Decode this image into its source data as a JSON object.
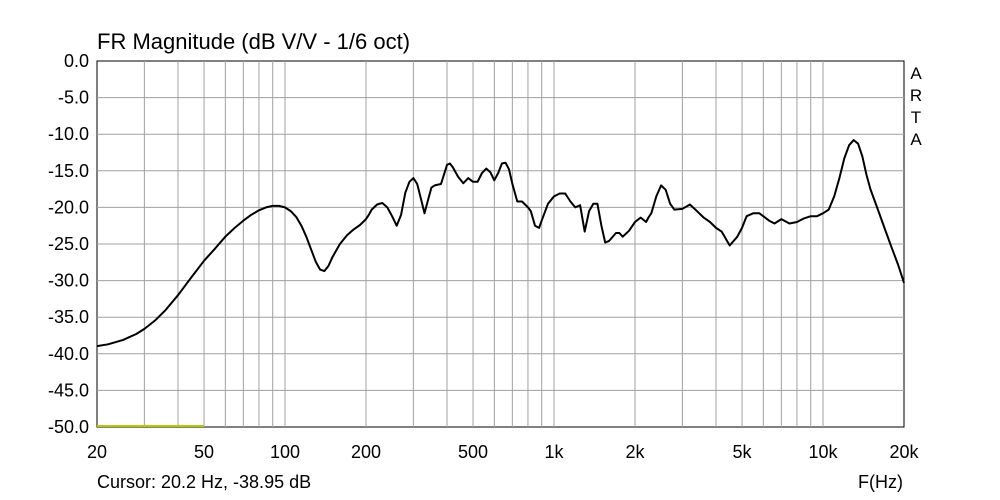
{
  "chart_data": {
    "type": "line",
    "title": "FR Magnitude (dB V/V - 1/6 oct)",
    "xlabel": "F(Hz)",
    "ylabel": "",
    "x_scale": "log",
    "xlim": [
      20,
      20000
    ],
    "ylim": [
      -50,
      0
    ],
    "grid": true,
    "y_ticks": [
      "0.0",
      "-5.0",
      "-10.0",
      "-15.0",
      "-20.0",
      "-25.0",
      "-30.0",
      "-35.0",
      "-40.0",
      "-45.0",
      "-50.0"
    ],
    "x_ticks": [
      "20",
      "50",
      "100",
      "200",
      "500",
      "1k",
      "2k",
      "5k",
      "10k",
      "20k"
    ],
    "brand": [
      "A",
      "R",
      "T",
      "A"
    ],
    "cursor_text": "Cursor: 20.2 Hz, -38.95 dB",
    "colors": {
      "curve": "#000000",
      "cursor_marker": "#b5c800",
      "grid": "#a0a0a0"
    },
    "cursor_marker": {
      "x_start": 20,
      "x_end": 50,
      "y": -50
    },
    "series": [
      {
        "x": [
          20,
          22,
          25,
          28,
          30,
          33,
          36,
          40,
          45,
          50,
          55,
          60,
          65,
          70,
          75,
          80,
          85,
          90,
          95,
          100,
          105,
          110,
          115,
          120,
          130,
          135,
          140,
          145,
          150,
          160,
          170,
          180,
          190,
          200,
          205,
          210,
          220,
          230,
          240,
          250,
          260,
          270,
          280,
          290,
          300,
          310,
          320,
          330,
          340,
          350,
          360,
          380,
          400,
          410,
          420,
          440,
          460,
          480,
          500,
          520,
          540,
          560,
          580,
          600,
          620,
          640,
          660,
          680,
          700,
          730,
          760,
          800,
          820,
          850,
          880,
          900,
          950,
          1000,
          1050,
          1100,
          1150,
          1200,
          1250,
          1300,
          1350,
          1400,
          1450,
          1500,
          1550,
          1600,
          1700,
          1750,
          1800,
          1900,
          2000,
          2100,
          2200,
          2250,
          2300,
          2400,
          2500,
          2600,
          2700,
          2800,
          3000,
          3200,
          3400,
          3600,
          3800,
          4000,
          4200,
          4500,
          4800,
          5000,
          5200,
          5500,
          5800,
          6000,
          6300,
          6600,
          7000,
          7500,
          8000,
          8500,
          9000,
          9500,
          10000,
          10500,
          11000,
          11500,
          12000,
          12500,
          13000,
          13500,
          14000,
          14500,
          15000,
          16000,
          17000,
          18000,
          19000,
          20000
        ],
        "y": [
          -38.95,
          -38.7,
          -38.1,
          -37.3,
          -36.6,
          -35.4,
          -34.0,
          -32.0,
          -29.5,
          -27.3,
          -25.6,
          -24.0,
          -22.8,
          -21.8,
          -21.0,
          -20.4,
          -20.0,
          -19.8,
          -19.8,
          -20.0,
          -20.5,
          -21.3,
          -22.5,
          -24.0,
          -27.4,
          -28.5,
          -28.7,
          -28.0,
          -26.8,
          -25.0,
          -23.8,
          -23.0,
          -22.4,
          -21.6,
          -21.0,
          -20.3,
          -19.6,
          -19.4,
          -20.0,
          -21.2,
          -22.5,
          -21.0,
          -18.0,
          -16.5,
          -16.0,
          -16.8,
          -18.8,
          -20.8,
          -19.0,
          -17.3,
          -17.0,
          -16.8,
          -14.2,
          -14.0,
          -14.5,
          -15.8,
          -16.7,
          -16.0,
          -16.5,
          -16.5,
          -15.3,
          -14.7,
          -15.2,
          -16.3,
          -15.3,
          -14.0,
          -13.9,
          -14.8,
          -16.8,
          -19.2,
          -19.2,
          -20.0,
          -20.5,
          -22.5,
          -22.8,
          -21.8,
          -19.5,
          -18.5,
          -18.1,
          -18.1,
          -19.2,
          -20.0,
          -19.7,
          -23.3,
          -20.5,
          -19.5,
          -19.5,
          -22.5,
          -24.8,
          -24.6,
          -23.5,
          -23.5,
          -24.0,
          -23.2,
          -22.0,
          -21.4,
          -22.0,
          -21.3,
          -20.8,
          -18.5,
          -17.0,
          -17.6,
          -19.5,
          -20.3,
          -20.2,
          -19.6,
          -20.5,
          -21.4,
          -22.0,
          -22.8,
          -23.3,
          -25.2,
          -24.0,
          -22.8,
          -21.2,
          -20.8,
          -20.8,
          -21.2,
          -21.8,
          -22.2,
          -21.6,
          -22.2,
          -22.0,
          -21.5,
          -21.2,
          -21.2,
          -20.8,
          -20.3,
          -18.5,
          -16.0,
          -13.3,
          -11.5,
          -10.8,
          -11.3,
          -13.0,
          -15.5,
          -17.5,
          -20.3,
          -23.0,
          -25.5,
          -27.8,
          -30.3
        ]
      }
    ]
  }
}
